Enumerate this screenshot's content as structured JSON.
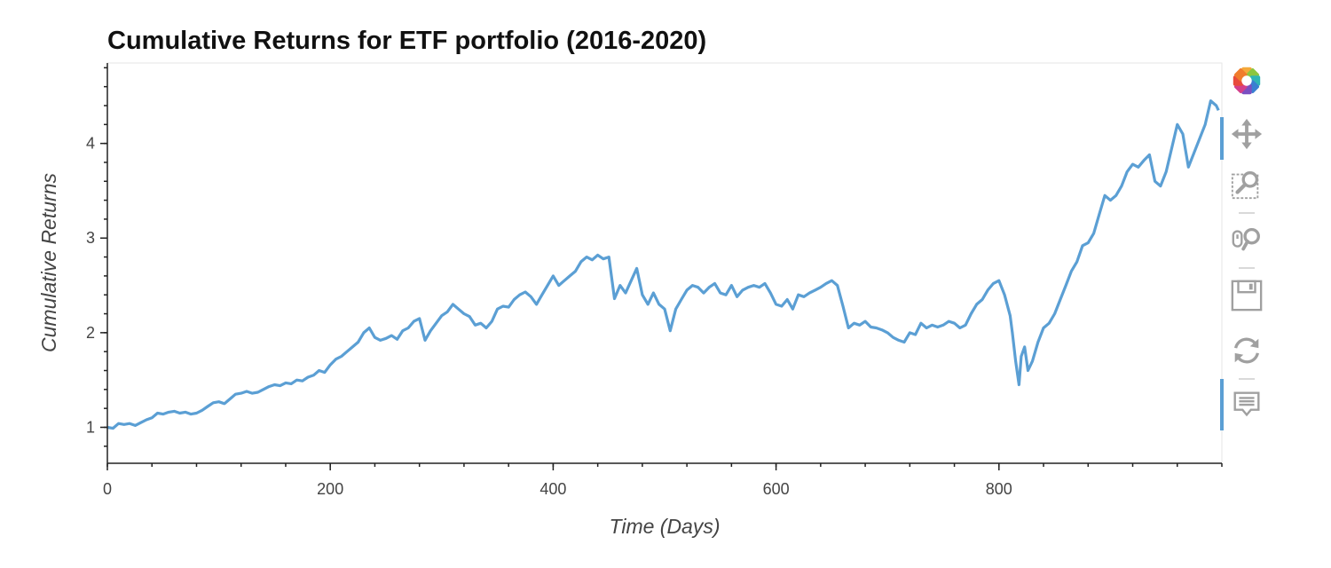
{
  "chart_data": {
    "type": "line",
    "title": "Cumulative Returns for ETF portfolio (2016-2020)",
    "xlabel": "Time (Days)",
    "ylabel": "Cumulative Returns",
    "xlim": [
      0,
      1000
    ],
    "ylim": [
      0.62,
      4.85
    ],
    "xticks": [
      0,
      200,
      400,
      600,
      800
    ],
    "yticks": [
      1,
      2,
      3,
      4
    ],
    "grid": false,
    "series": [
      {
        "color": "#5b9fd4",
        "x": [
          0,
          5,
          10,
          15,
          20,
          25,
          30,
          35,
          40,
          45,
          50,
          55,
          60,
          65,
          70,
          75,
          80,
          85,
          90,
          95,
          100,
          105,
          110,
          115,
          120,
          125,
          130,
          135,
          140,
          145,
          150,
          155,
          160,
          165,
          170,
          175,
          180,
          185,
          190,
          195,
          200,
          205,
          210,
          215,
          220,
          225,
          230,
          235,
          240,
          245,
          250,
          255,
          260,
          265,
          270,
          275,
          280,
          285,
          290,
          295,
          300,
          305,
          310,
          315,
          320,
          325,
          330,
          335,
          340,
          345,
          350,
          355,
          360,
          365,
          370,
          375,
          380,
          385,
          390,
          395,
          400,
          405,
          410,
          415,
          420,
          425,
          430,
          435,
          440,
          445,
          450,
          455,
          460,
          465,
          470,
          475,
          480,
          485,
          490,
          495,
          500,
          505,
          510,
          515,
          520,
          525,
          530,
          535,
          540,
          545,
          550,
          555,
          560,
          565,
          570,
          575,
          580,
          585,
          590,
          595,
          600,
          605,
          610,
          615,
          620,
          625,
          630,
          635,
          640,
          645,
          650,
          655,
          660,
          665,
          670,
          675,
          680,
          685,
          690,
          695,
          700,
          705,
          710,
          715,
          720,
          725,
          730,
          735,
          740,
          745,
          750,
          755,
          760,
          765,
          770,
          775,
          780,
          785,
          790,
          795,
          800,
          805,
          810,
          812,
          815,
          818,
          820,
          823,
          826,
          830,
          835,
          840,
          845,
          850,
          855,
          860,
          865,
          870,
          875,
          880,
          885,
          890,
          895,
          900,
          905,
          910,
          915,
          920,
          925,
          930,
          935,
          940,
          945,
          950,
          955,
          960,
          965,
          970,
          975,
          980,
          985,
          990,
          995,
          997
        ],
        "values": [
          1.0,
          0.99,
          1.04,
          1.03,
          1.04,
          1.02,
          1.05,
          1.08,
          1.1,
          1.15,
          1.14,
          1.16,
          1.17,
          1.15,
          1.16,
          1.14,
          1.15,
          1.18,
          1.22,
          1.26,
          1.27,
          1.25,
          1.3,
          1.35,
          1.36,
          1.38,
          1.36,
          1.37,
          1.4,
          1.43,
          1.45,
          1.44,
          1.47,
          1.46,
          1.5,
          1.49,
          1.53,
          1.55,
          1.6,
          1.58,
          1.66,
          1.72,
          1.75,
          1.8,
          1.85,
          1.9,
          2.0,
          2.05,
          1.95,
          1.92,
          1.94,
          1.97,
          1.93,
          2.02,
          2.05,
          2.12,
          2.15,
          1.92,
          2.02,
          2.1,
          2.18,
          2.22,
          2.3,
          2.25,
          2.2,
          2.17,
          2.08,
          2.1,
          2.05,
          2.12,
          2.25,
          2.28,
          2.27,
          2.35,
          2.4,
          2.43,
          2.38,
          2.3,
          2.4,
          2.5,
          2.6,
          2.5,
          2.55,
          2.6,
          2.65,
          2.75,
          2.8,
          2.77,
          2.82,
          2.78,
          2.8,
          2.36,
          2.5,
          2.42,
          2.55,
          2.68,
          2.4,
          2.3,
          2.42,
          2.3,
          2.25,
          2.02,
          2.25,
          2.35,
          2.45,
          2.5,
          2.48,
          2.42,
          2.48,
          2.52,
          2.42,
          2.4,
          2.5,
          2.38,
          2.45,
          2.48,
          2.5,
          2.48,
          2.52,
          2.42,
          2.3,
          2.28,
          2.35,
          2.25,
          2.4,
          2.38,
          2.42,
          2.45,
          2.48,
          2.52,
          2.55,
          2.5,
          2.28,
          2.05,
          2.1,
          2.08,
          2.12,
          2.06,
          2.05,
          2.03,
          2.0,
          1.95,
          1.92,
          1.9,
          2.0,
          1.98,
          2.1,
          2.05,
          2.08,
          2.06,
          2.08,
          2.12,
          2.1,
          2.05,
          2.08,
          2.2,
          2.3,
          2.35,
          2.45,
          2.52,
          2.55,
          2.4,
          2.18,
          2.0,
          1.7,
          1.45,
          1.75,
          1.85,
          1.6,
          1.7,
          1.9,
          2.05,
          2.1,
          2.2,
          2.35,
          2.5,
          2.65,
          2.75,
          2.92,
          2.95,
          3.05,
          3.25,
          3.45,
          3.4,
          3.45,
          3.55,
          3.7,
          3.78,
          3.75,
          3.82,
          3.88,
          3.6,
          3.55,
          3.7,
          3.95,
          4.2,
          4.1,
          3.75,
          3.9,
          4.05,
          4.2,
          4.45,
          4.4,
          4.35
        ]
      }
    ]
  },
  "toolbar": {
    "tools": [
      {
        "name": "bokeh-logo-icon",
        "interactable": true
      },
      {
        "name": "pan-icon",
        "interactable": true
      },
      {
        "name": "box-zoom-icon",
        "interactable": true
      },
      {
        "name": "wheel-zoom-icon",
        "interactable": true
      },
      {
        "name": "save-icon",
        "interactable": true
      },
      {
        "name": "reset-icon",
        "interactable": true
      },
      {
        "name": "hover-icon",
        "interactable": true
      }
    ],
    "active_color": "#5b9fd4",
    "icon_color": "#a0a0a0"
  }
}
